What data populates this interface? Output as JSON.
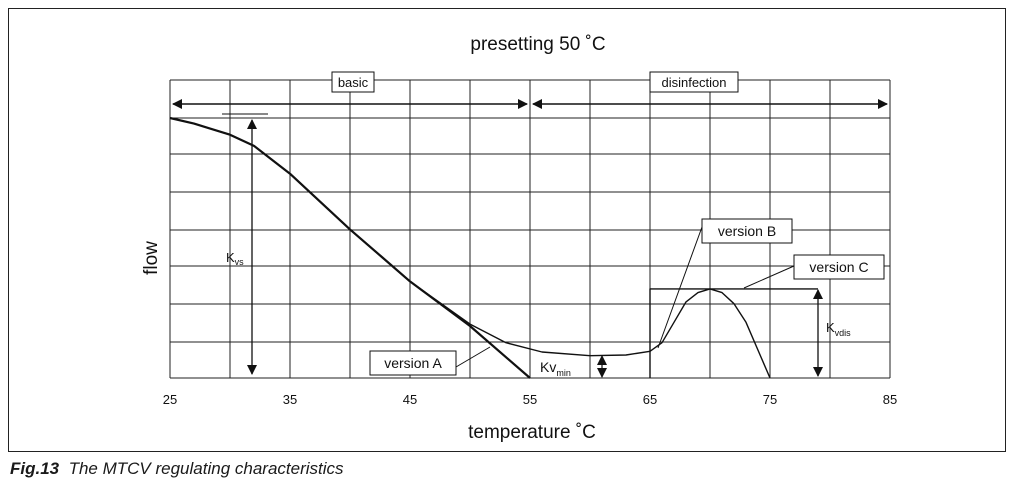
{
  "chart_data": {
    "type": "line",
    "title": "presetting 50 ˚C",
    "xlabel": "temperature ˚C",
    "ylabel": "flow",
    "xlim": [
      25,
      85
    ],
    "ylim": [
      0,
      7
    ],
    "x_ticks": [
      "25",
      "35",
      "45",
      "55",
      "65",
      "75",
      "85"
    ],
    "grid": true,
    "series": [
      {
        "name": "version A",
        "x": [
          25,
          27,
          30,
          32,
          35,
          40,
          45,
          50,
          55
        ],
        "y": [
          7.0,
          6.85,
          6.55,
          6.25,
          5.5,
          4.0,
          2.6,
          1.4,
          0.0
        ]
      },
      {
        "name": "version B",
        "x": [
          25,
          27,
          30,
          32,
          35,
          40,
          45,
          50,
          53,
          56,
          60,
          63,
          65,
          66,
          67,
          68,
          69,
          70,
          71,
          72,
          73,
          75
        ],
        "y": [
          7.0,
          6.85,
          6.55,
          6.25,
          5.5,
          4.0,
          2.6,
          1.45,
          0.95,
          0.7,
          0.6,
          0.62,
          0.72,
          0.95,
          1.5,
          2.05,
          2.3,
          2.4,
          2.3,
          2.0,
          1.5,
          0.0
        ]
      },
      {
        "name": "version C",
        "x": [
          65,
          65,
          79
        ],
        "y": [
          0,
          2.4,
          2.4
        ]
      }
    ],
    "ranges": [
      {
        "label": "basic",
        "from": 25,
        "to": 55
      },
      {
        "label": "disinfection",
        "from": 55,
        "to": 85
      }
    ],
    "annotations": {
      "kvs": {
        "label": "K",
        "sub": "vs"
      },
      "kvmin": {
        "label": "Kv",
        "sub": "min"
      },
      "kvdis": {
        "label": "K",
        "sub": "vdis"
      }
    }
  },
  "caption": {
    "number": "Fig.13",
    "text": "The MTCV regulating characteristics"
  }
}
